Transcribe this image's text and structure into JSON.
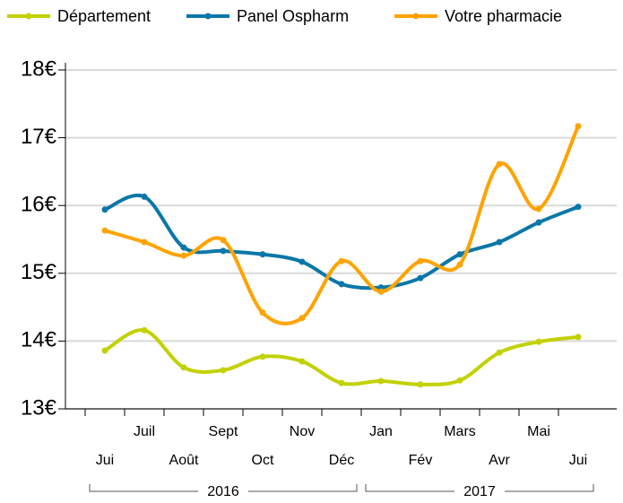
{
  "chart_data": {
    "type": "line",
    "categories": [
      "Jui",
      "Juil",
      "Août",
      "Sept",
      "Oct",
      "Nov",
      "Déc",
      "Jan",
      "Fév",
      "Mars",
      "Avr",
      "Mai",
      "Jui"
    ],
    "groups": [
      {
        "label": "2016",
        "start": 0,
        "end": 6
      },
      {
        "label": "2017",
        "start": 7,
        "end": 12
      }
    ],
    "series": [
      {
        "name": "Département",
        "color": "#c2d100",
        "values": [
          13.86,
          14.16,
          13.61,
          13.57,
          13.77,
          13.7,
          13.38,
          13.41,
          13.36,
          13.42,
          13.83,
          13.99,
          14.06
        ]
      },
      {
        "name": "Panel Ospharm",
        "color": "#0a77a8",
        "values": [
          15.94,
          16.13,
          15.38,
          15.33,
          15.28,
          15.17,
          14.84,
          14.79,
          14.93,
          15.28,
          15.46,
          15.75,
          15.98
        ]
      },
      {
        "name": "Votre pharmacie",
        "color": "#ffa300",
        "values": [
          15.63,
          15.46,
          15.26,
          15.49,
          14.42,
          14.34,
          15.18,
          14.73,
          15.18,
          15.13,
          16.61,
          15.95,
          17.17
        ]
      }
    ],
    "ylim": [
      13,
      18
    ],
    "yticks": [
      {
        "value": 13,
        "label": "13€"
      },
      {
        "value": 14,
        "label": "14€"
      },
      {
        "value": 15,
        "label": "15€"
      },
      {
        "value": 16,
        "label": "16€"
      },
      {
        "value": 17,
        "label": "17€"
      },
      {
        "value": 18,
        "label": "18€"
      }
    ],
    "grid": true
  }
}
